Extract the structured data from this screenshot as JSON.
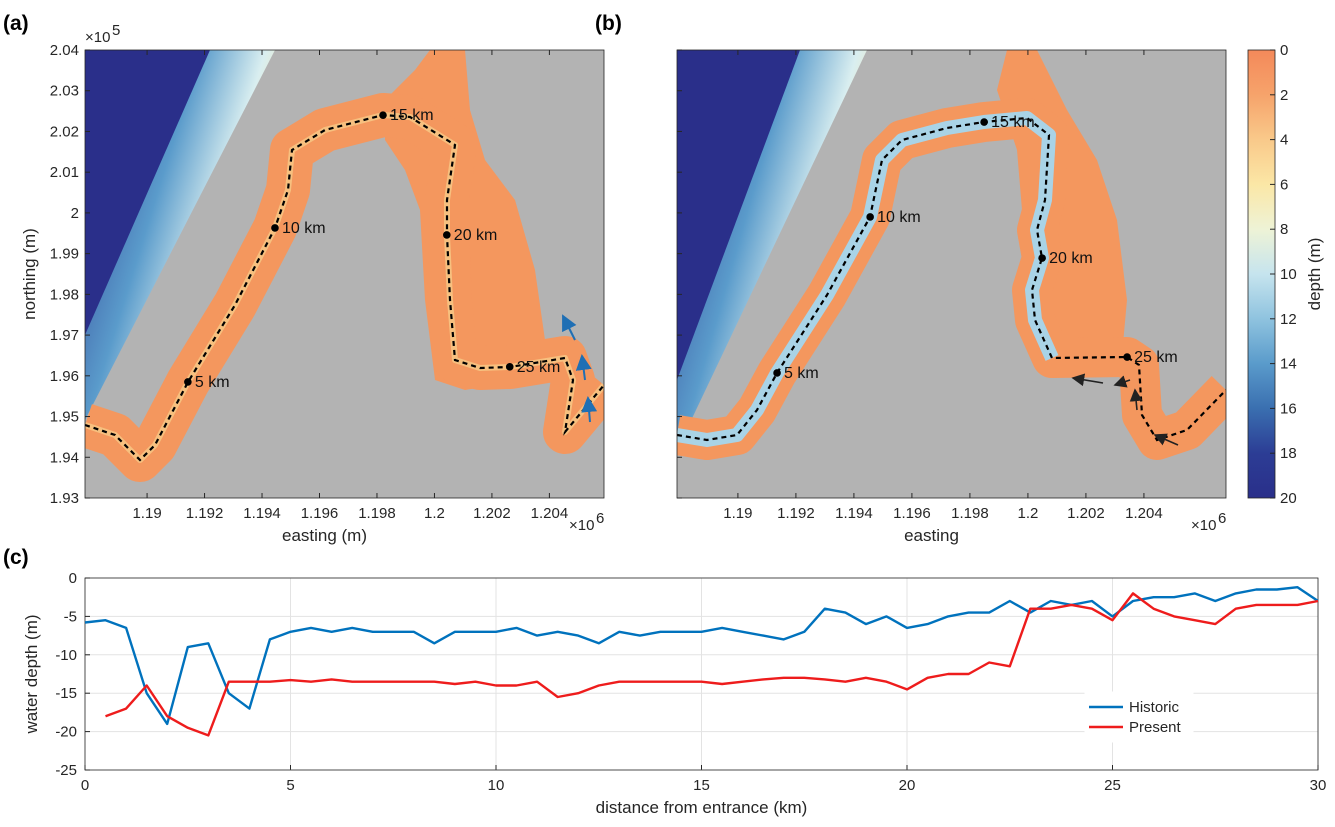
{
  "chart_data": [
    {
      "type": "map",
      "panel": "(a)",
      "xlabel": "easting (m)",
      "ylabel": "northing (m)",
      "x_multiplier": {
        "base": "×10",
        "exponent": "6"
      },
      "y_multiplier": {
        "base": "×10",
        "exponent": "5"
      },
      "xlim": [
        1.18784,
        1.2059
      ],
      "xticks": [
        1.19,
        1.192,
        1.194,
        1.196,
        1.198,
        1.2,
        1.202,
        1.204
      ],
      "ylim": [
        1.93,
        2.04
      ],
      "yticks": [
        1.93,
        1.94,
        1.95,
        1.96,
        1.97,
        1.98,
        1.99,
        2,
        2.01,
        2.02,
        2.03,
        2.04
      ],
      "markers": [
        {
          "label": "5 km",
          "x": 1.19142,
          "y": 1.9585
        },
        {
          "label": "10 km",
          "x": 1.19445,
          "y": 1.9963
        },
        {
          "label": "15 km",
          "x": 1.19821,
          "y": 2.024
        },
        {
          "label": "20 km",
          "x": 1.20043,
          "y": 1.9946
        },
        {
          "label": "25 km",
          "x": 1.20262,
          "y": 1.9622
        }
      ]
    },
    {
      "type": "map",
      "panel": "(b)",
      "xlabel": "easting",
      "x_multiplier": {
        "base": "×10",
        "exponent": "6"
      },
      "xlim": [
        1.1879,
        1.20683
      ],
      "xticks": [
        1.19,
        1.192,
        1.194,
        1.196,
        1.198,
        1.2,
        1.202,
        1.204
      ],
      "ylim": [
        1.93,
        2.04
      ],
      "markers": [
        {
          "label": "5 km",
          "x": 1.19135,
          "y": 1.9607
        },
        {
          "label": "10 km",
          "x": 1.19456,
          "y": 1.999
        },
        {
          "label": "15 km",
          "x": 1.19849,
          "y": 2.0223
        },
        {
          "label": "20 km",
          "x": 1.20049,
          "y": 1.9889
        },
        {
          "label": "25 km",
          "x": 1.20342,
          "y": 1.9646
        }
      ],
      "colorbar": {
        "label": "depth (m)",
        "lim": [
          0,
          20
        ],
        "ticks": [
          0,
          2,
          4,
          6,
          8,
          10,
          12,
          14,
          16,
          18,
          20
        ],
        "colors": [
          "#f4895a",
          "#f6a36b",
          "#f9c98a",
          "#fbe7a6",
          "#eef3d6",
          "#c6e4ee",
          "#8fc3df",
          "#5a9bcb",
          "#3a6fb0",
          "#2c3d95",
          "#2a2f8a"
        ]
      }
    },
    {
      "type": "line",
      "panel": "(c)",
      "xlabel": "distance from entrance (km)",
      "ylabel": "water depth (m)",
      "x": [
        0,
        0.5,
        1,
        1.5,
        2,
        2.5,
        3,
        3.5,
        4,
        4.5,
        5,
        5.5,
        6,
        6.5,
        7,
        7.5,
        8,
        8.5,
        9,
        9.5,
        10,
        10.5,
        11,
        11.5,
        12,
        12.5,
        13,
        13.5,
        14,
        14.5,
        15,
        15.5,
        16,
        16.5,
        17,
        17.5,
        18,
        18.5,
        19,
        19.5,
        20,
        20.5,
        21,
        21.5,
        22,
        22.5,
        23,
        23.5,
        24,
        24.5,
        25,
        25.5,
        26,
        26.5,
        27,
        27.5,
        28,
        28.5,
        29,
        29.5,
        30
      ],
      "series": [
        {
          "name": "Historic",
          "color": "#0072bd",
          "values": [
            -5.8,
            -5.5,
            -6.5,
            -15,
            -19,
            -9,
            -8.5,
            -15,
            -17,
            -8,
            -7,
            -6.5,
            -7,
            -6.5,
            -7,
            -7,
            -7,
            -8.5,
            -7,
            -7,
            -7,
            -6.5,
            -7.5,
            -7,
            -7.5,
            -8.5,
            -7,
            -7.5,
            -7,
            -7,
            -7,
            -6.5,
            -7,
            -7.5,
            -8,
            -7,
            -4,
            -4.5,
            -6,
            -5,
            -6.5,
            -6,
            -5,
            -4.5,
            -4.5,
            -3,
            -4.5,
            -3,
            -3.5,
            -3,
            -5,
            -3,
            -2.5,
            -2.5,
            -2,
            -3,
            -2,
            -1.5,
            -1.5,
            -1.2,
            -3
          ]
        },
        {
          "name": "Present",
          "color": "#ee1c1c",
          "values": [
            null,
            -18,
            -17,
            -14,
            -18,
            -19.5,
            -20.5,
            -13.5,
            -13.5,
            -13.5,
            -13.3,
            -13.5,
            -13.2,
            -13.5,
            -13.5,
            -13.5,
            -13.5,
            -13.5,
            -13.8,
            -13.5,
            -14,
            -14,
            -13.5,
            -15.5,
            -15,
            -14,
            -13.5,
            -13.5,
            -13.5,
            -13.5,
            -13.5,
            -13.8,
            -13.5,
            -13.2,
            -13,
            -13,
            -13.2,
            -13.5,
            -13,
            -13.5,
            -14.5,
            -13,
            -12.5,
            -12.5,
            -11,
            -11.5,
            -4,
            -4,
            -3.5,
            -4,
            -5.5,
            -2,
            -4,
            -5,
            -5.5,
            -6,
            -4,
            -3.5,
            -3.5,
            -3.5,
            -3
          ]
        }
      ],
      "xlim": [
        0,
        30
      ],
      "xticks": [
        0,
        5,
        10,
        15,
        20,
        25,
        30
      ],
      "ylim": [
        -25,
        0
      ],
      "yticks": [
        -25,
        -20,
        -15,
        -10,
        -5,
        0
      ],
      "grid": true,
      "legend": "lower right"
    }
  ]
}
